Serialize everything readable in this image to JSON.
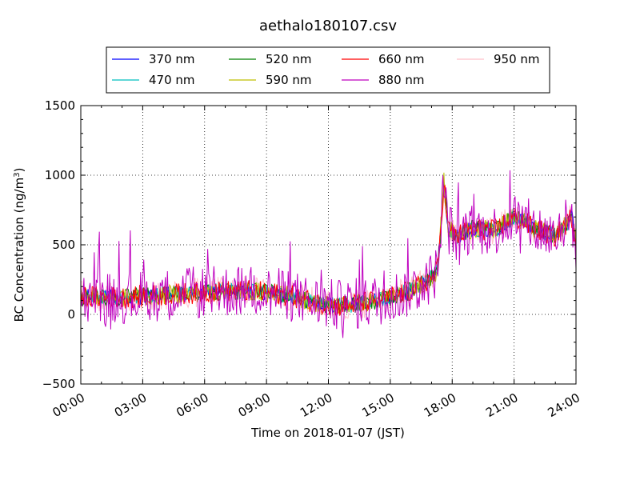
{
  "chart_data": {
    "type": "line",
    "title": "aethalo180107.csv",
    "xlabel": "Time on 2018-01-07 (JST)",
    "ylabel_main": "BC Concentration (ng/m",
    "ylabel_sup": "3",
    "ylabel_end": ")",
    "xlim_hours": [
      0,
      24
    ],
    "ylim": [
      -500,
      1500
    ],
    "x_ticks": [
      {
        "hour": 0,
        "label": "00:00"
      },
      {
        "hour": 3,
        "label": "03:00"
      },
      {
        "hour": 6,
        "label": "06:00"
      },
      {
        "hour": 9,
        "label": "09:00"
      },
      {
        "hour": 12,
        "label": "12:00"
      },
      {
        "hour": 15,
        "label": "15:00"
      },
      {
        "hour": 18,
        "label": "18:00"
      },
      {
        "hour": 21,
        "label": "21:00"
      },
      {
        "hour": 24,
        "label": "24:00"
      }
    ],
    "y_ticks": [
      {
        "value": -500,
        "label": "−500"
      },
      {
        "value": 0,
        "label": "0"
      },
      {
        "value": 500,
        "label": "500"
      },
      {
        "value": 1000,
        "label": "1000"
      },
      {
        "value": 1500,
        "label": "1500"
      }
    ],
    "grid": true,
    "legend_position": "top",
    "series": [
      {
        "name": "370 nm",
        "color": "#0000ff",
        "amp": 55
      },
      {
        "name": "470 nm",
        "color": "#00bfbf",
        "amp": 60
      },
      {
        "name": "520 nm",
        "color": "#008000",
        "amp": 65
      },
      {
        "name": "590 nm",
        "color": "#bfbf00",
        "amp": 70
      },
      {
        "name": "660 nm",
        "color": "#ff0000",
        "amp": 80
      },
      {
        "name": "880 nm",
        "color": "#bf00bf",
        "amp": 190
      },
      {
        "name": "950 nm",
        "color": "#ffc0cb",
        "amp": 110
      }
    ],
    "baseline": {
      "x_hours": [
        0,
        2,
        4,
        6,
        8,
        10,
        11.5,
        12.5,
        14,
        15,
        16,
        17,
        17.3,
        17.6,
        17.8,
        18.2,
        19,
        20,
        21,
        22,
        23,
        23.8,
        24
      ],
      "y": [
        130,
        120,
        140,
        160,
        170,
        140,
        80,
        60,
        90,
        120,
        170,
        260,
        330,
        950,
        620,
        560,
        620,
        600,
        700,
        620,
        560,
        700,
        500
      ]
    }
  }
}
